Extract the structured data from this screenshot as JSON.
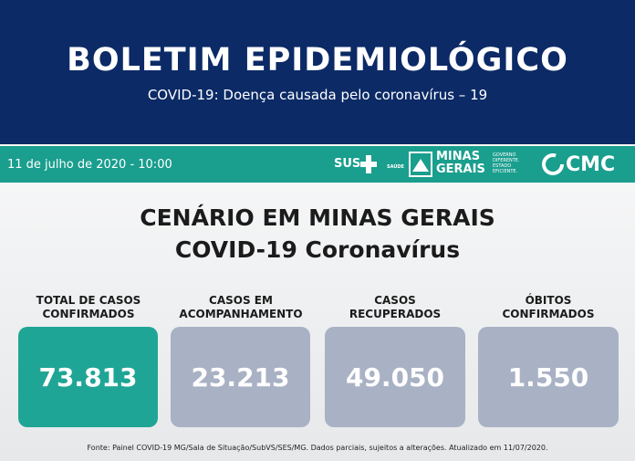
{
  "header": {
    "title": "BOLETIM EPIDEMIOLÓGICO",
    "subtitle": "COVID-19: Doença causada pelo coronavírus – 19"
  },
  "bar": {
    "date": "11 de julho de 2020 - 10:00",
    "logos": {
      "sus": "SUS",
      "saude": "SAÚDE",
      "minas": [
        "MINAS",
        "GERAIS"
      ],
      "slogan": [
        "GOVERNO",
        "DIFERENTE.",
        "ESTADO",
        "EFICIENTE."
      ],
      "cmc": "CMC"
    }
  },
  "heading": [
    "CENÁRIO EM MINAS GERAIS",
    "COVID-19 Coronavírus"
  ],
  "cards": [
    {
      "label": [
        "TOTAL DE CASOS",
        "CONFIRMADOS"
      ],
      "value": "73.813"
    },
    {
      "label": [
        "CASOS EM",
        "ACOMPANHAMENTO"
      ],
      "value": "23.213"
    },
    {
      "label": [
        "CASOS",
        "RECUPERADOS"
      ],
      "value": "49.050"
    },
    {
      "label": [
        "ÓBITOS",
        "CONFIRMADOS"
      ],
      "value": "1.550"
    }
  ],
  "footer": "Fonte: Painel COVID-19 MG/Sala de Situação/SubVS/SES/MG. Dados parciais, sujeitos a alterações. Atualizado em 11/07/2020."
}
